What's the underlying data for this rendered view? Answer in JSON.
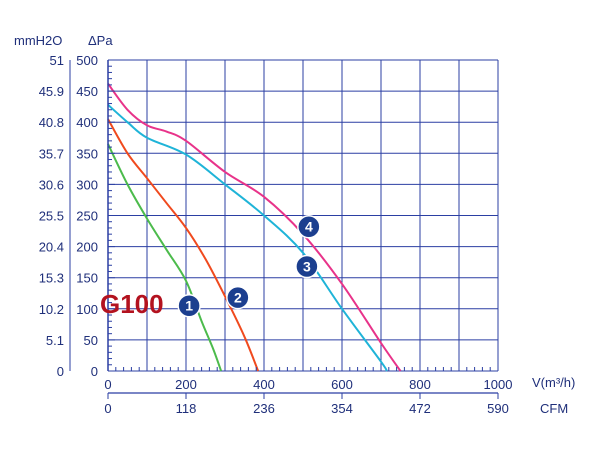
{
  "chart_data": {
    "type": "line",
    "title": "",
    "model_label": "G100",
    "y_units": {
      "left": "mmH2O",
      "right": "ΔPa"
    },
    "x_units": {
      "primary": "V(m³/h)",
      "secondary": "CFM"
    },
    "ylim": [
      0,
      500
    ],
    "xlim": [
      0,
      1000
    ],
    "grid": true,
    "y_ticks_pa": [
      "0",
      "50",
      "100",
      "150",
      "200",
      "250",
      "300",
      "350",
      "400",
      "450",
      "500"
    ],
    "y_ticks_mmh2o": [
      "0",
      "5.1",
      "10.2",
      "15.3",
      "20.4",
      "25.5",
      "30.6",
      "35.7",
      "40.8",
      "45.9",
      "51"
    ],
    "x_ticks_m3h": [
      "0",
      "200",
      "400",
      "600",
      "800",
      "1000"
    ],
    "x_ticks_cfm": [
      "0",
      "118",
      "236",
      "354",
      "472",
      "590"
    ],
    "series": [
      {
        "label": "1",
        "color": "#4cbb4c",
        "points": [
          [
            0,
            365
          ],
          [
            50,
            300
          ],
          [
            100,
            245
          ],
          [
            150,
            195
          ],
          [
            200,
            145
          ],
          [
            240,
            80
          ],
          [
            270,
            35
          ],
          [
            290,
            0
          ]
        ],
        "label_at": [
          208,
          105
        ]
      },
      {
        "label": "2",
        "color": "#f04a1e",
        "points": [
          [
            0,
            405
          ],
          [
            50,
            350
          ],
          [
            100,
            310
          ],
          [
            150,
            270
          ],
          [
            200,
            230
          ],
          [
            250,
            180
          ],
          [
            300,
            120
          ],
          [
            350,
            55
          ],
          [
            385,
            0
          ]
        ],
        "label_at": [
          333,
          118
        ]
      },
      {
        "label": "3",
        "color": "#1fb4d8",
        "points": [
          [
            0,
            428
          ],
          [
            50,
            400
          ],
          [
            100,
            375
          ],
          [
            200,
            348
          ],
          [
            300,
            300
          ],
          [
            400,
            250
          ],
          [
            500,
            190
          ],
          [
            600,
            100
          ],
          [
            700,
            15
          ],
          [
            715,
            0
          ]
        ],
        "label_at": [
          510,
          168
        ]
      },
      {
        "label": "4",
        "color": "#e8338a",
        "points": [
          [
            0,
            462
          ],
          [
            50,
            420
          ],
          [
            100,
            395
          ],
          [
            150,
            385
          ],
          [
            200,
            370
          ],
          [
            300,
            320
          ],
          [
            400,
            280
          ],
          [
            500,
            220
          ],
          [
            600,
            140
          ],
          [
            700,
            45
          ],
          [
            750,
            0
          ]
        ],
        "label_at": [
          515,
          232
        ]
      }
    ]
  }
}
